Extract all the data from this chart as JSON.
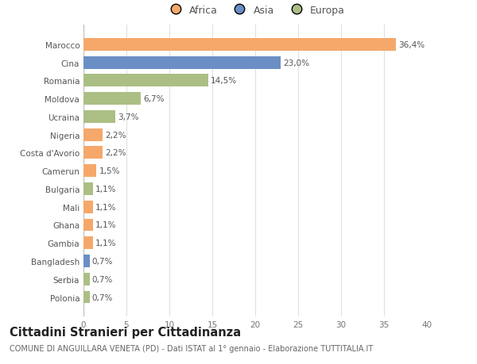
{
  "countries": [
    "Marocco",
    "Cina",
    "Romania",
    "Moldova",
    "Ucraina",
    "Nigeria",
    "Costa d'Avorio",
    "Camerun",
    "Bulgaria",
    "Mali",
    "Ghana",
    "Gambia",
    "Bangladesh",
    "Serbia",
    "Polonia"
  ],
  "values": [
    36.4,
    23.0,
    14.5,
    6.7,
    3.7,
    2.2,
    2.2,
    1.5,
    1.1,
    1.1,
    1.1,
    1.1,
    0.7,
    0.7,
    0.7
  ],
  "labels": [
    "36,4%",
    "23,0%",
    "14,5%",
    "6,7%",
    "3,7%",
    "2,2%",
    "2,2%",
    "1,5%",
    "1,1%",
    "1,1%",
    "1,1%",
    "1,1%",
    "0,7%",
    "0,7%",
    "0,7%"
  ],
  "continents": [
    "Africa",
    "Asia",
    "Europa",
    "Europa",
    "Europa",
    "Africa",
    "Africa",
    "Africa",
    "Europa",
    "Africa",
    "Africa",
    "Africa",
    "Asia",
    "Europa",
    "Europa"
  ],
  "colors": {
    "Africa": "#F5A86A",
    "Asia": "#6B8EC5",
    "Europa": "#ABBF84"
  },
  "title": "Cittadini Stranieri per Cittadinanza",
  "subtitle": "COMUNE DI ANGUILLARA VENETA (PD) - Dati ISTAT al 1° gennaio - Elaborazione TUTTITALIA.IT",
  "xlim": [
    0,
    40
  ],
  "xticks": [
    0,
    5,
    10,
    15,
    20,
    25,
    30,
    35,
    40
  ],
  "background_color": "#ffffff",
  "grid_color": "#e0e0e0",
  "bar_height": 0.7,
  "label_fontsize": 7.5,
  "tick_fontsize": 7.5,
  "title_fontsize": 10.5,
  "subtitle_fontsize": 7.0
}
